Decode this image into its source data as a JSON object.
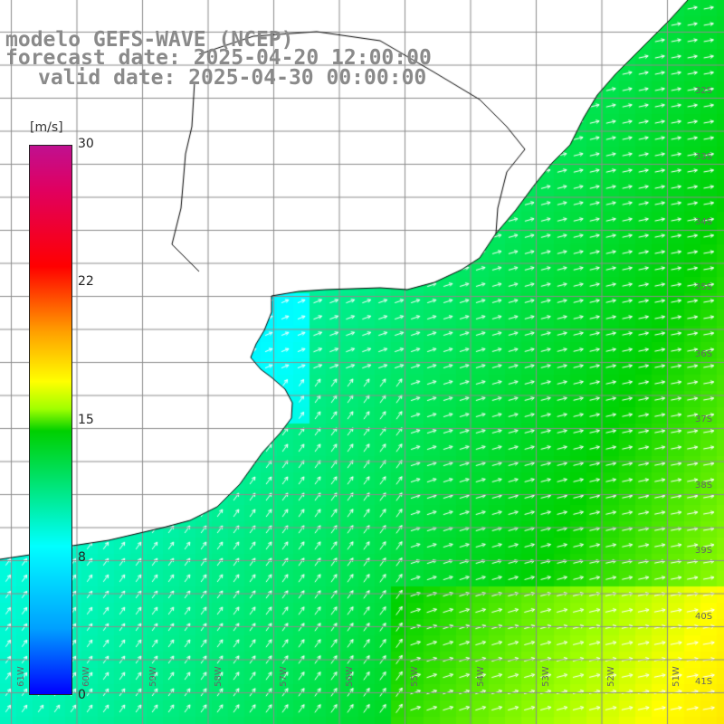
{
  "title": {
    "line1": "modelo GEFS-WAVE (NCEP)",
    "line2": "forecast date: 2025-04-20 12:00:00",
    "line3": "valid date: 2025-04-30 00:00:00"
  },
  "colorbar": {
    "unit": "[m/s]",
    "ticks": [
      "30",
      "22",
      "15",
      "8",
      "0"
    ],
    "min": 0,
    "max": 30
  },
  "lat_labels": [
    "32S",
    "33S",
    "34S",
    "35S",
    "36S",
    "37S",
    "38S",
    "39S",
    "40S",
    "41S"
  ],
  "lon_labels": [
    "61W",
    "60W",
    "59W",
    "58W",
    "57W",
    "56W",
    "55W",
    "54W",
    "53W",
    "52W",
    "51W"
  ],
  "colors": {
    "ocean_low": "#1e8cff",
    "ocean_mid": "#00ffff",
    "ocean_high": "#33ff33",
    "ocean_max": "#d8ff00",
    "land": "#ffffff",
    "grid": "#8c8c8c"
  },
  "layers": {
    "field": "wind speed (shaded)",
    "vectors": "wind direction (white arrows)",
    "coastline": "black line"
  }
}
